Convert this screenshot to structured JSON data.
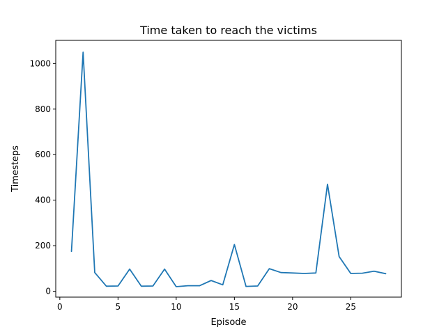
{
  "chart_data": {
    "type": "line",
    "title": "Time taken to reach the victims",
    "xlabel": "Episode",
    "ylabel": "Timesteps",
    "xlim": [
      -0.35,
      29.35
    ],
    "ylim": [
      -26,
      1102
    ],
    "xticks": [
      0,
      5,
      10,
      15,
      20,
      25
    ],
    "yticks": [
      0,
      200,
      400,
      600,
      800,
      1000
    ],
    "grid": false,
    "series_color": "#1f77b4",
    "series": [
      {
        "x": [
          1,
          2,
          3,
          4,
          5,
          6,
          7,
          8,
          9,
          10,
          11,
          12,
          13,
          14,
          15,
          16,
          17,
          18,
          19,
          20,
          21,
          22,
          23,
          24,
          25,
          26,
          27,
          28
        ],
        "values": [
          175,
          1050,
          82,
          22,
          23,
          97,
          22,
          23,
          97,
          20,
          24,
          24,
          47,
          28,
          205,
          21,
          23,
          99,
          82,
          80,
          78,
          80,
          470,
          152,
          78,
          79,
          88,
          77
        ]
      }
    ]
  }
}
